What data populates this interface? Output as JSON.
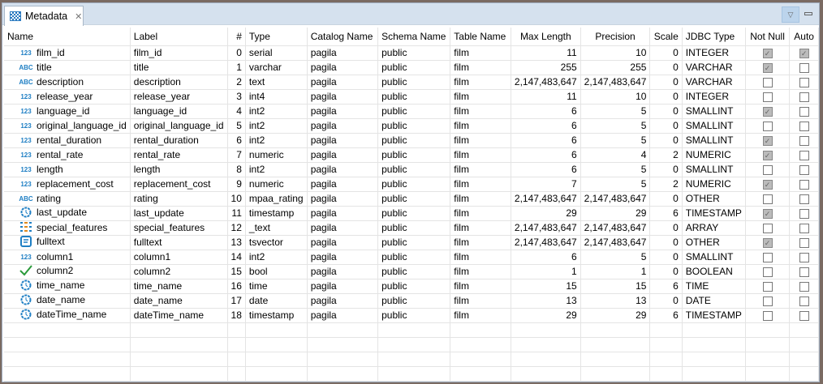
{
  "tab": {
    "title": "Metadata",
    "icon": "grid-icon"
  },
  "columns": [
    "Name",
    "Label",
    "#",
    "Type",
    "Catalog Name",
    "Schema Name",
    "Table Name",
    "Max Length",
    "Precision",
    "Scale",
    "JDBC Type",
    "Not Null",
    "Auto"
  ],
  "rows": [
    {
      "icon": "123",
      "name": "film_id",
      "label": "film_id",
      "idx": "0",
      "type": "serial",
      "catalog": "pagila",
      "schema": "public",
      "table": "film",
      "maxlen": "11",
      "precision": "10",
      "scale": "0",
      "jdbc": "INTEGER",
      "notnull": true,
      "auto": true
    },
    {
      "icon": "ABC",
      "name": "title",
      "label": "title",
      "idx": "1",
      "type": "varchar",
      "catalog": "pagila",
      "schema": "public",
      "table": "film",
      "maxlen": "255",
      "precision": "255",
      "scale": "0",
      "jdbc": "VARCHAR",
      "notnull": true,
      "auto": false
    },
    {
      "icon": "ABC",
      "name": "description",
      "label": "description",
      "idx": "2",
      "type": "text",
      "catalog": "pagila",
      "schema": "public",
      "table": "film",
      "maxlen": "2,147,483,647",
      "precision": "2,147,483,647",
      "scale": "0",
      "jdbc": "VARCHAR",
      "notnull": false,
      "auto": false
    },
    {
      "icon": "123",
      "name": "release_year",
      "label": "release_year",
      "idx": "3",
      "type": "int4",
      "catalog": "pagila",
      "schema": "public",
      "table": "film",
      "maxlen": "11",
      "precision": "10",
      "scale": "0",
      "jdbc": "INTEGER",
      "notnull": false,
      "auto": false
    },
    {
      "icon": "123",
      "name": "language_id",
      "label": "language_id",
      "idx": "4",
      "type": "int2",
      "catalog": "pagila",
      "schema": "public",
      "table": "film",
      "maxlen": "6",
      "precision": "5",
      "scale": "0",
      "jdbc": "SMALLINT",
      "notnull": true,
      "auto": false
    },
    {
      "icon": "123",
      "name": "original_language_id",
      "label": "original_language_id",
      "idx": "5",
      "type": "int2",
      "catalog": "pagila",
      "schema": "public",
      "table": "film",
      "maxlen": "6",
      "precision": "5",
      "scale": "0",
      "jdbc": "SMALLINT",
      "notnull": false,
      "auto": false
    },
    {
      "icon": "123",
      "name": "rental_duration",
      "label": "rental_duration",
      "idx": "6",
      "type": "int2",
      "catalog": "pagila",
      "schema": "public",
      "table": "film",
      "maxlen": "6",
      "precision": "5",
      "scale": "0",
      "jdbc": "SMALLINT",
      "notnull": true,
      "auto": false
    },
    {
      "icon": "123",
      "name": "rental_rate",
      "label": "rental_rate",
      "idx": "7",
      "type": "numeric",
      "catalog": "pagila",
      "schema": "public",
      "table": "film",
      "maxlen": "6",
      "precision": "4",
      "scale": "2",
      "jdbc": "NUMERIC",
      "notnull": true,
      "auto": false
    },
    {
      "icon": "123",
      "name": "length",
      "label": "length",
      "idx": "8",
      "type": "int2",
      "catalog": "pagila",
      "schema": "public",
      "table": "film",
      "maxlen": "6",
      "precision": "5",
      "scale": "0",
      "jdbc": "SMALLINT",
      "notnull": false,
      "auto": false
    },
    {
      "icon": "123",
      "name": "replacement_cost",
      "label": "replacement_cost",
      "idx": "9",
      "type": "numeric",
      "catalog": "pagila",
      "schema": "public",
      "table": "film",
      "maxlen": "7",
      "precision": "5",
      "scale": "2",
      "jdbc": "NUMERIC",
      "notnull": true,
      "auto": false
    },
    {
      "icon": "ABC",
      "name": "rating",
      "label": "rating",
      "idx": "10",
      "type": "mpaa_rating",
      "catalog": "pagila",
      "schema": "public",
      "table": "film",
      "maxlen": "2,147,483,647",
      "precision": "2,147,483,647",
      "scale": "0",
      "jdbc": "OTHER",
      "notnull": false,
      "auto": false
    },
    {
      "icon": "clock",
      "name": "last_update",
      "label": "last_update",
      "idx": "11",
      "type": "timestamp",
      "catalog": "pagila",
      "schema": "public",
      "table": "film",
      "maxlen": "29",
      "precision": "29",
      "scale": "6",
      "jdbc": "TIMESTAMP",
      "notnull": true,
      "auto": false
    },
    {
      "icon": "array",
      "name": "special_features",
      "label": "special_features",
      "idx": "12",
      "type": "_text",
      "catalog": "pagila",
      "schema": "public",
      "table": "film",
      "maxlen": "2,147,483,647",
      "precision": "2,147,483,647",
      "scale": "0",
      "jdbc": "ARRAY",
      "notnull": false,
      "auto": false
    },
    {
      "icon": "doc",
      "name": "fulltext",
      "label": "fulltext",
      "idx": "13",
      "type": "tsvector",
      "catalog": "pagila",
      "schema": "public",
      "table": "film",
      "maxlen": "2,147,483,647",
      "precision": "2,147,483,647",
      "scale": "0",
      "jdbc": "OTHER",
      "notnull": true,
      "auto": false
    },
    {
      "icon": "123",
      "name": "column1",
      "label": "column1",
      "idx": "14",
      "type": "int2",
      "catalog": "pagila",
      "schema": "public",
      "table": "film",
      "maxlen": "6",
      "precision": "5",
      "scale": "0",
      "jdbc": "SMALLINT",
      "notnull": false,
      "auto": false
    },
    {
      "icon": "check",
      "name": "column2",
      "label": "column2",
      "idx": "15",
      "type": "bool",
      "catalog": "pagila",
      "schema": "public",
      "table": "film",
      "maxlen": "1",
      "precision": "1",
      "scale": "0",
      "jdbc": "BOOLEAN",
      "notnull": false,
      "auto": false
    },
    {
      "icon": "clock",
      "name": "time_name",
      "label": "time_name",
      "idx": "16",
      "type": "time",
      "catalog": "pagila",
      "schema": "public",
      "table": "film",
      "maxlen": "15",
      "precision": "15",
      "scale": "6",
      "jdbc": "TIME",
      "notnull": false,
      "auto": false
    },
    {
      "icon": "clock",
      "name": "date_name",
      "label": "date_name",
      "idx": "17",
      "type": "date",
      "catalog": "pagila",
      "schema": "public",
      "table": "film",
      "maxlen": "13",
      "precision": "13",
      "scale": "0",
      "jdbc": "DATE",
      "notnull": false,
      "auto": false
    },
    {
      "icon": "clock",
      "name": "dateTime_name",
      "label": "dateTime_name",
      "idx": "18",
      "type": "timestamp",
      "catalog": "pagila",
      "schema": "public",
      "table": "film",
      "maxlen": "29",
      "precision": "29",
      "scale": "6",
      "jdbc": "TIMESTAMP",
      "notnull": false,
      "auto": false
    }
  ]
}
